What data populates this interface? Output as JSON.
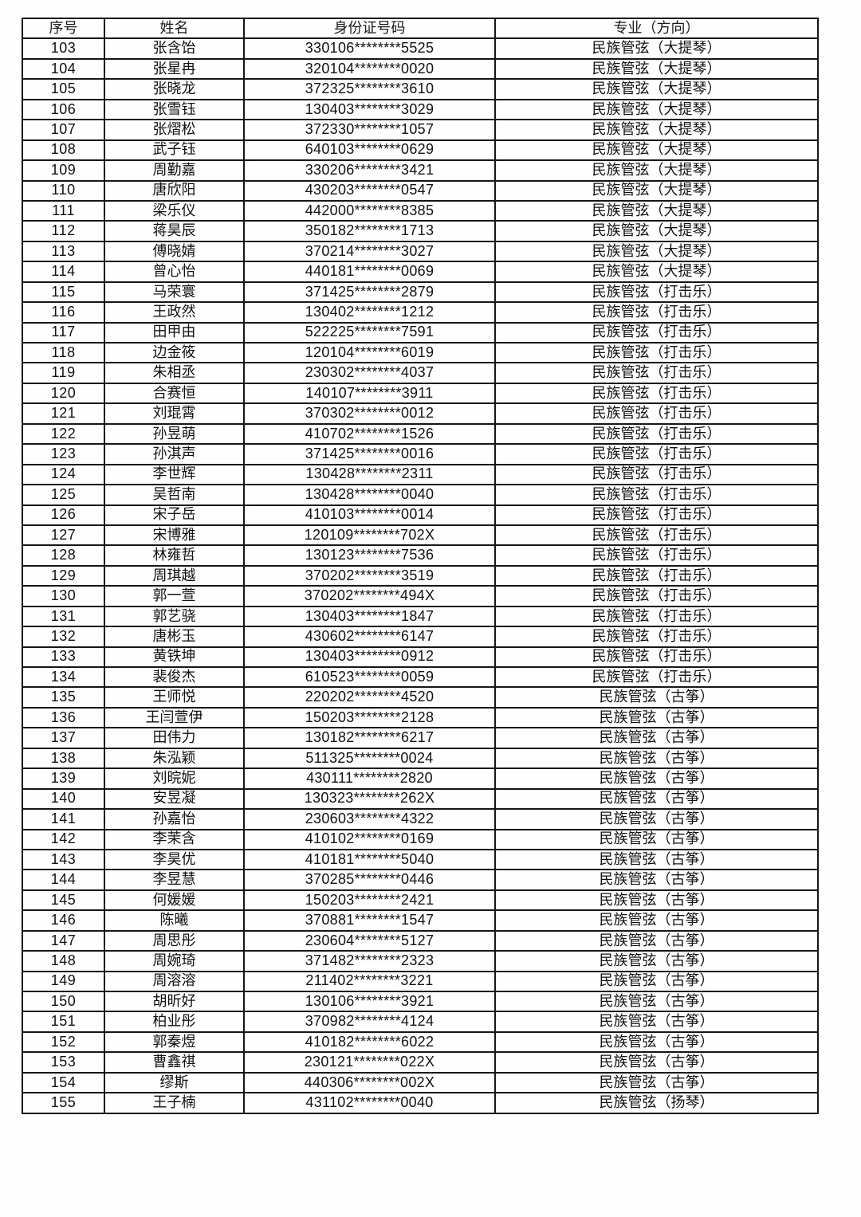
{
  "table": {
    "headers": [
      "序号",
      "姓名",
      "身份证号码",
      "专业（方向）"
    ],
    "rows": [
      [
        "103",
        "张含饴",
        "330106********5525",
        "民族管弦（大提琴）"
      ],
      [
        "104",
        "张星冉",
        "320104********0020",
        "民族管弦（大提琴）"
      ],
      [
        "105",
        "张晓龙",
        "372325********3610",
        "民族管弦（大提琴）"
      ],
      [
        "106",
        "张雪钰",
        "130403********3029",
        "民族管弦（大提琴）"
      ],
      [
        "107",
        "张熠松",
        "372330********1057",
        "民族管弦（大提琴）"
      ],
      [
        "108",
        "武子钰",
        "640103********0629",
        "民族管弦（大提琴）"
      ],
      [
        "109",
        "周勤嘉",
        "330206********3421",
        "民族管弦（大提琴）"
      ],
      [
        "110",
        "唐欣阳",
        "430203********0547",
        "民族管弦（大提琴）"
      ],
      [
        "111",
        "梁乐仪",
        "442000********8385",
        "民族管弦（大提琴）"
      ],
      [
        "112",
        "蒋昊辰",
        "350182********1713",
        "民族管弦（大提琴）"
      ],
      [
        "113",
        "傅晓婧",
        "370214********3027",
        "民族管弦（大提琴）"
      ],
      [
        "114",
        "曾心怡",
        "440181********0069",
        "民族管弦（大提琴）"
      ],
      [
        "115",
        "马荣寰",
        "371425********2879",
        "民族管弦（打击乐）"
      ],
      [
        "116",
        "王政然",
        "130402********1212",
        "民族管弦（打击乐）"
      ],
      [
        "117",
        "田甲由",
        "522225********7591",
        "民族管弦（打击乐）"
      ],
      [
        "118",
        "边金筱",
        "120104********6019",
        "民族管弦（打击乐）"
      ],
      [
        "119",
        "朱相丞",
        "230302********4037",
        "民族管弦（打击乐）"
      ],
      [
        "120",
        "合赛恒",
        "140107********3911",
        "民族管弦（打击乐）"
      ],
      [
        "121",
        "刘琨霄",
        "370302********0012",
        "民族管弦（打击乐）"
      ],
      [
        "122",
        "孙昱萌",
        "410702********1526",
        "民族管弦（打击乐）"
      ],
      [
        "123",
        "孙淇声",
        "371425********0016",
        "民族管弦（打击乐）"
      ],
      [
        "124",
        "李世辉",
        "130428********2311",
        "民族管弦（打击乐）"
      ],
      [
        "125",
        "吴哲南",
        "130428********0040",
        "民族管弦（打击乐）"
      ],
      [
        "126",
        "宋子岳",
        "410103********0014",
        "民族管弦（打击乐）"
      ],
      [
        "127",
        "宋博雅",
        "120109********702X",
        "民族管弦（打击乐）"
      ],
      [
        "128",
        "林雍哲",
        "130123********7536",
        "民族管弦（打击乐）"
      ],
      [
        "129",
        "周琪越",
        "370202********3519",
        "民族管弦（打击乐）"
      ],
      [
        "130",
        "郭一萱",
        "370202********494X",
        "民族管弦（打击乐）"
      ],
      [
        "131",
        "郭艺骁",
        "130403********1847",
        "民族管弦（打击乐）"
      ],
      [
        "132",
        "唐彬玉",
        "430602********6147",
        "民族管弦（打击乐）"
      ],
      [
        "133",
        "黄铁坤",
        "130403********0912",
        "民族管弦（打击乐）"
      ],
      [
        "134",
        "裴俊杰",
        "610523********0059",
        "民族管弦（打击乐）"
      ],
      [
        "135",
        "王师悦",
        "220202********4520",
        "民族管弦（古筝）"
      ],
      [
        "136",
        "王闫萱伊",
        "150203********2128",
        "民族管弦（古筝）"
      ],
      [
        "137",
        "田伟力",
        "130182********6217",
        "民族管弦（古筝）"
      ],
      [
        "138",
        "朱泓颖",
        "511325********0024",
        "民族管弦（古筝）"
      ],
      [
        "139",
        "刘晥妮",
        "430111********2820",
        "民族管弦（古筝）"
      ],
      [
        "140",
        "安昱凝",
        "130323********262X",
        "民族管弦（古筝）"
      ],
      [
        "141",
        "孙嘉怡",
        "230603********4322",
        "民族管弦（古筝）"
      ],
      [
        "142",
        "李茉含",
        "410102********0169",
        "民族管弦（古筝）"
      ],
      [
        "143",
        "李昊优",
        "410181********5040",
        "民族管弦（古筝）"
      ],
      [
        "144",
        "李昱慧",
        "370285********0446",
        "民族管弦（古筝）"
      ],
      [
        "145",
        "何媛媛",
        "150203********2421",
        "民族管弦（古筝）"
      ],
      [
        "146",
        "陈曦",
        "370881********1547",
        "民族管弦（古筝）"
      ],
      [
        "147",
        "周思彤",
        "230604********5127",
        "民族管弦（古筝）"
      ],
      [
        "148",
        "周婉琦",
        "371482********2323",
        "民族管弦（古筝）"
      ],
      [
        "149",
        "周溶溶",
        "211402********3221",
        "民族管弦（古筝）"
      ],
      [
        "150",
        "胡昕好",
        "130106********3921",
        "民族管弦（古筝）"
      ],
      [
        "151",
        "柏业彤",
        "370982********4124",
        "民族管弦（古筝）"
      ],
      [
        "152",
        "郭秦煜",
        "410182********6022",
        "民族管弦（古筝）"
      ],
      [
        "153",
        "曹鑫祺",
        "230121********022X",
        "民族管弦（古筝）"
      ],
      [
        "154",
        "缪斯",
        "440306********002X",
        "民族管弦（古筝）"
      ],
      [
        "155",
        "王子楠",
        "431102********0040",
        "民族管弦（扬琴）"
      ]
    ]
  }
}
